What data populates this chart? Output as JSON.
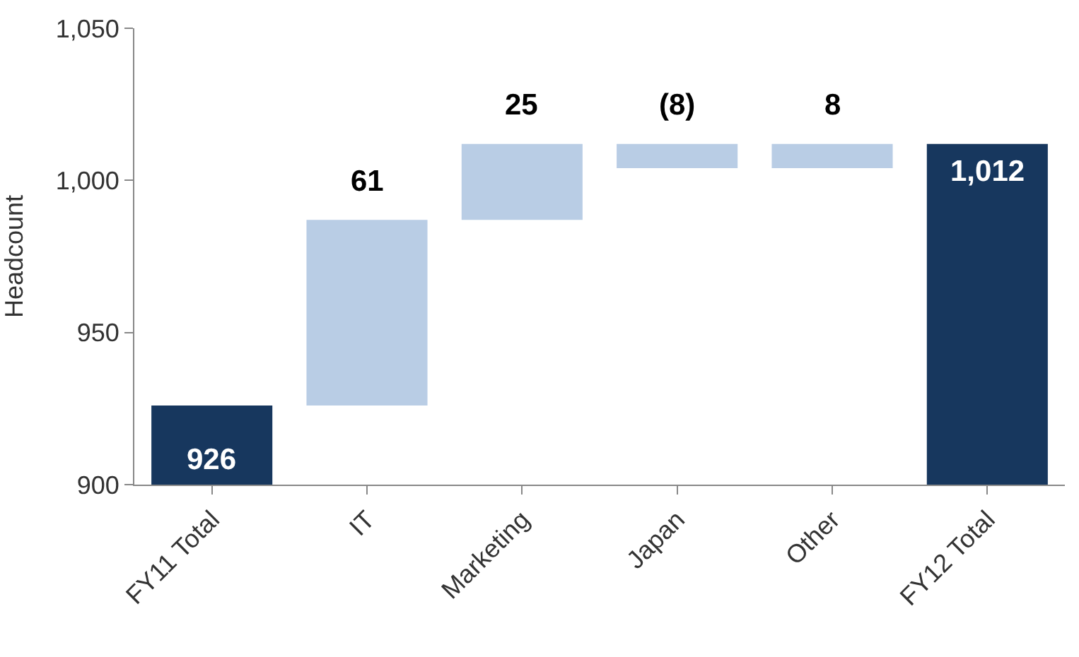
{
  "chart_data": {
    "type": "bar",
    "ylabel": "Headcount",
    "categories": [
      "FY11 Total",
      "IT",
      "Marketing",
      "Japan",
      "Other",
      "FY12 Total"
    ],
    "values": [
      926,
      61,
      25,
      -8,
      8,
      1012
    ],
    "base": [
      0,
      926,
      987,
      1012,
      1004,
      0
    ],
    "colors": [
      "#17375e",
      "#b9cde5",
      "#b9cde5",
      "#b9cde5",
      "#b9cde5",
      "#17375e"
    ],
    "value_labels": [
      "926",
      "61",
      "25",
      "(8)",
      "8",
      "1,012"
    ],
    "ylim": [
      900,
      1050
    ],
    "yticks": [
      {
        "value": 900,
        "label": "900"
      },
      {
        "value": 950,
        "label": "950"
      },
      {
        "value": 1000,
        "label": "1,000"
      },
      {
        "value": 1050,
        "label": "1,050"
      }
    ],
    "grid": false
  }
}
